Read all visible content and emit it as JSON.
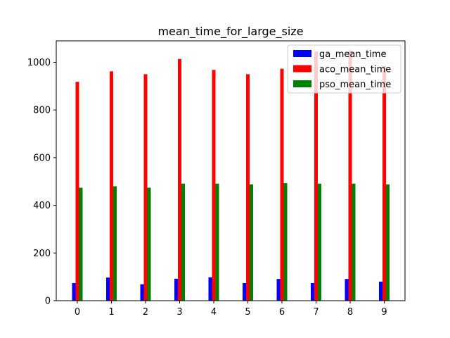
{
  "chart_data": {
    "type": "bar",
    "title": "mean_time_for_large_size",
    "xlabel": "",
    "ylabel": "",
    "categories": [
      "0",
      "1",
      "2",
      "3",
      "4",
      "5",
      "6",
      "7",
      "8",
      "9"
    ],
    "yticks": [
      0,
      200,
      400,
      600,
      800,
      1000
    ],
    "ylim": [
      0,
      1090
    ],
    "grid": false,
    "legend_position": "top-right",
    "series": [
      {
        "name": "ga_mean_time",
        "color": "#0000ff",
        "values": [
          74,
          97,
          69,
          92,
          98,
          74,
          91,
          74,
          91,
          80
        ]
      },
      {
        "name": "aco_mean_time",
        "color": "#ff0000",
        "values": [
          918,
          962,
          950,
          1014,
          968,
          950,
          973,
          1045,
          1050,
          985
        ]
      },
      {
        "name": "pso_mean_time",
        "color": "#008000",
        "values": [
          474,
          480,
          474,
          491,
          491,
          488,
          493,
          491,
          491,
          488
        ]
      }
    ]
  }
}
